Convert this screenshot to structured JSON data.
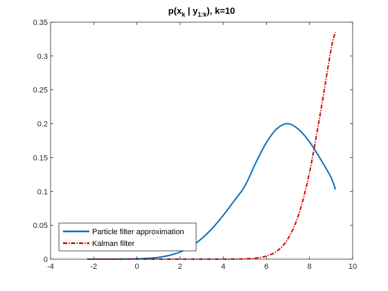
{
  "chart_data": {
    "type": "line",
    "title": {
      "prefix": "p(x",
      "sub1": "k",
      "mid": " |  y",
      "sub2": "1:k",
      "suffix": "), k=10"
    },
    "xlabel": "",
    "ylabel": "",
    "xlim": [
      -4,
      10
    ],
    "ylim": [
      0,
      0.35
    ],
    "xticks": [
      -4,
      -2,
      0,
      2,
      4,
      6,
      8,
      10
    ],
    "yticks": [
      0,
      0.05,
      0.1,
      0.15,
      0.2,
      0.25,
      0.3,
      0.35
    ],
    "xtick_labels": [
      "-4",
      "-2",
      "0",
      "2",
      "4",
      "6",
      "8",
      "10"
    ],
    "ytick_labels": [
      "0",
      "0.05",
      "0.1",
      "0.15",
      "0.2",
      "0.25",
      "0.3",
      "0.35"
    ],
    "grid": false,
    "legend_position": "bottom-left",
    "series": [
      {
        "name": "Particle filter approximation",
        "color": "#0072BD",
        "style": "solid",
        "x": [
          -2.3,
          -1.5,
          -0.5,
          0,
          0.5,
          1,
          1.5,
          2,
          2.5,
          3,
          3.5,
          4,
          4.5,
          5,
          5.5,
          6,
          6.5,
          7,
          7.5,
          8,
          8.5,
          9,
          9.2
        ],
        "y": [
          0.0,
          0.0,
          0.0002,
          0.0005,
          0.0012,
          0.0026,
          0.0055,
          0.0105,
          0.0185,
          0.0302,
          0.0457,
          0.0646,
          0.0858,
          0.1077,
          0.1416,
          0.172,
          0.193,
          0.2002,
          0.1915,
          0.1732,
          0.1482,
          0.1206,
          0.1028
        ]
      },
      {
        "name": "Kalman filter",
        "color": "#D40000",
        "style": "dashdot",
        "x": [
          -2.3,
          0,
          2,
          4,
          5,
          5.5,
          6,
          6.5,
          7,
          7.5,
          8,
          8.5,
          9,
          9.2
        ],
        "y": [
          0.0,
          0.0,
          0.0,
          0.0,
          0.0005,
          0.0015,
          0.0045,
          0.012,
          0.03,
          0.066,
          0.128,
          0.215,
          0.31,
          0.335
        ]
      }
    ]
  }
}
